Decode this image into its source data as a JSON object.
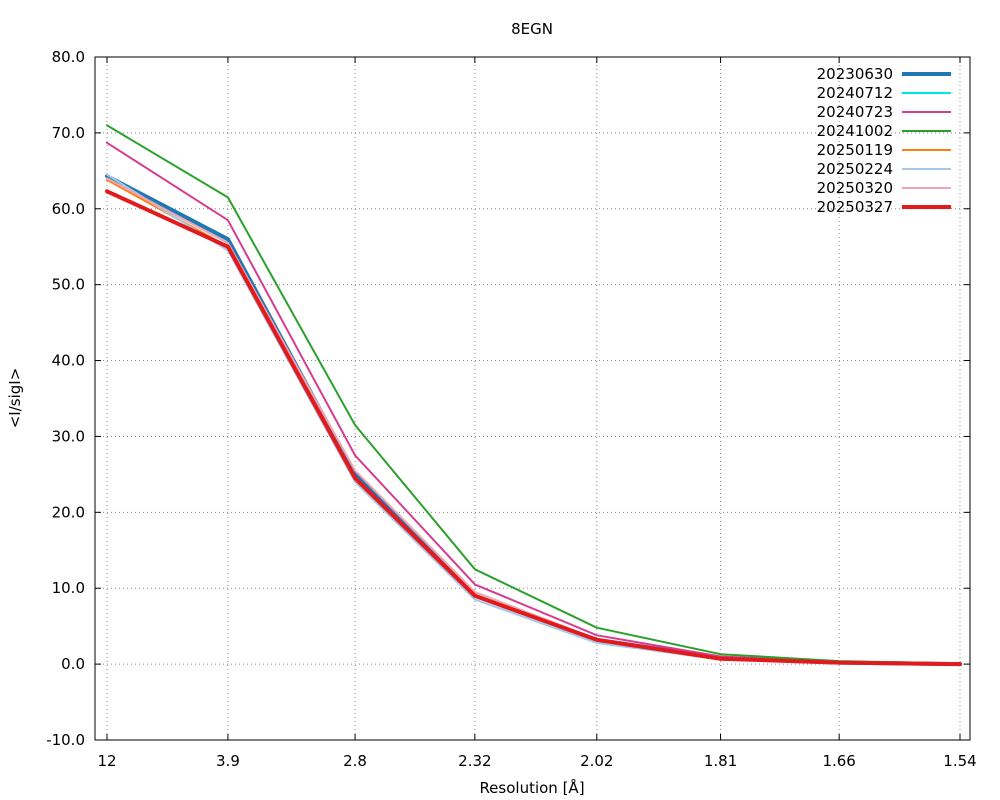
{
  "chart_data": {
    "type": "line",
    "title": "8EGN",
    "xlabel": "Resolution [Å]",
    "ylabel": "<I/sigI>",
    "x_axis_scale": "reciprocal squared resolution (1/d²)",
    "x_ticks": [
      "12",
      "3.9",
      "2.8",
      "2.32",
      "2.02",
      "1.81",
      "1.66",
      "1.54"
    ],
    "ylim": [
      -10.0,
      80.0
    ],
    "y_ticks": [
      "-10.0",
      "0.0",
      "10.0",
      "20.0",
      "30.0",
      "40.0",
      "50.0",
      "60.0",
      "70.0",
      "80.0"
    ],
    "grid": true,
    "legend_position": "top-right",
    "series": [
      {
        "name": "20230630",
        "color": "#1f77b4",
        "line_width": 4,
        "x": [
          "12",
          "3.9",
          "2.8",
          "2.32",
          "2.02",
          "1.81",
          "1.66",
          "1.54"
        ],
        "values": [
          64.3,
          56.0,
          25.0,
          9.0,
          3.2,
          0.8,
          0.2,
          0.0
        ]
      },
      {
        "name": "20240712",
        "color": "#00e5e5",
        "line_width": 2,
        "x": [
          "12",
          "3.9",
          "2.8",
          "2.32",
          "2.02",
          "1.81",
          "1.66",
          "1.54"
        ],
        "values": [
          64.0,
          55.5,
          24.5,
          9.0,
          3.1,
          0.7,
          0.2,
          0.0
        ]
      },
      {
        "name": "20240723",
        "color": "#d63c8f",
        "line_width": 2,
        "x": [
          "12",
          "3.9",
          "2.8",
          "2.32",
          "2.02",
          "1.81",
          "1.66",
          "1.54"
        ],
        "values": [
          68.7,
          58.5,
          27.5,
          10.5,
          3.8,
          1.0,
          0.3,
          0.1
        ]
      },
      {
        "name": "20241002",
        "color": "#2ca02c",
        "line_width": 2,
        "x": [
          "12",
          "3.9",
          "2.8",
          "2.32",
          "2.02",
          "1.81",
          "1.66",
          "1.54"
        ],
        "values": [
          71.0,
          61.5,
          31.5,
          12.5,
          4.8,
          1.3,
          0.4,
          0.1
        ]
      },
      {
        "name": "20250119",
        "color": "#ff7f0e",
        "line_width": 2,
        "x": [
          "12",
          "3.9",
          "2.8",
          "2.32",
          "2.02",
          "1.81",
          "1.66",
          "1.54"
        ],
        "values": [
          63.8,
          55.0,
          24.5,
          9.0,
          3.1,
          0.7,
          0.2,
          0.0
        ]
      },
      {
        "name": "20250224",
        "color": "#a6c8e8",
        "line_width": 2,
        "x": [
          "12",
          "3.9",
          "2.8",
          "2.32",
          "2.02",
          "1.81",
          "1.66",
          "1.54"
        ],
        "values": [
          64.5,
          54.5,
          24.0,
          8.5,
          2.8,
          0.6,
          0.2,
          0.0
        ]
      },
      {
        "name": "20250320",
        "color": "#f4a3b0",
        "line_width": 2,
        "x": [
          "12",
          "3.9",
          "2.8",
          "2.32",
          "2.02",
          "1.81",
          "1.66",
          "1.54"
        ],
        "values": [
          64.0,
          55.5,
          25.5,
          9.5,
          3.3,
          0.8,
          0.2,
          0.0
        ]
      },
      {
        "name": "20250327",
        "color": "#e31a1c",
        "line_width": 4,
        "x": [
          "12",
          "3.9",
          "2.8",
          "2.32",
          "2.02",
          "1.81",
          "1.66",
          "1.54"
        ],
        "values": [
          62.3,
          55.0,
          24.5,
          9.0,
          3.2,
          0.7,
          0.2,
          0.0
        ]
      }
    ]
  }
}
